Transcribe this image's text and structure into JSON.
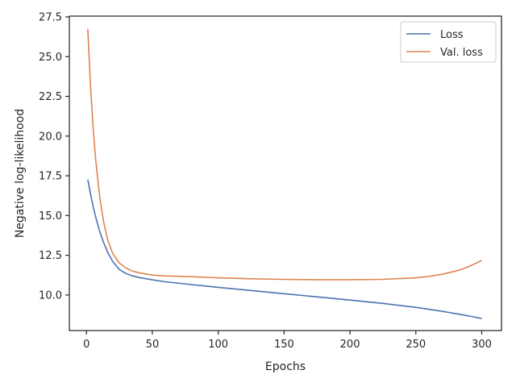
{
  "chart_data": {
    "type": "line",
    "xlabel": "Epochs",
    "ylabel": "Negative log-likelihood",
    "xlim": [
      -13,
      315
    ],
    "ylim": [
      7.76,
      27.55
    ],
    "xticks": [
      0,
      50,
      100,
      150,
      200,
      250,
      300
    ],
    "xtick_labels": [
      "0",
      "50",
      "100",
      "150",
      "200",
      "250",
      "300"
    ],
    "yticks": [
      10.0,
      12.5,
      15.0,
      17.5,
      20.0,
      22.5,
      25.0,
      27.5
    ],
    "ytick_labels": [
      "10.0",
      "12.5",
      "15.0",
      "17.5",
      "20.0",
      "22.5",
      "25.0",
      "27.5"
    ],
    "grid": false,
    "legend_position": "top-right",
    "series": [
      {
        "name": "Loss",
        "color": "#4c72b0",
        "x": [
          1,
          3,
          5,
          7,
          10,
          13,
          16,
          20,
          25,
          30,
          35,
          40,
          50,
          60,
          80,
          100,
          125,
          150,
          175,
          200,
          225,
          250,
          265,
          275,
          280,
          285,
          290,
          295,
          300
        ],
        "y": [
          17.27,
          16.4,
          15.6,
          14.9,
          14.0,
          13.3,
          12.7,
          12.1,
          11.6,
          11.35,
          11.2,
          11.1,
          10.95,
          10.83,
          10.65,
          10.48,
          10.28,
          10.08,
          9.88,
          9.68,
          9.47,
          9.22,
          9.04,
          8.9,
          8.83,
          8.76,
          8.68,
          8.6,
          8.51
        ]
      },
      {
        "name": "Val. loss",
        "color": "#dd8452",
        "x": [
          1,
          3,
          5,
          7,
          10,
          13,
          16,
          20,
          25,
          30,
          35,
          40,
          50,
          60,
          80,
          100,
          125,
          150,
          175,
          200,
          225,
          250,
          260,
          270,
          280,
          285,
          290,
          295,
          300
        ],
        "y": [
          26.75,
          23.3,
          20.6,
          18.5,
          16.2,
          14.6,
          13.5,
          12.6,
          12.0,
          11.7,
          11.5,
          11.4,
          11.25,
          11.2,
          11.15,
          11.08,
          11.02,
          10.98,
          10.96,
          10.96,
          10.98,
          11.08,
          11.17,
          11.3,
          11.5,
          11.62,
          11.78,
          11.97,
          12.18
        ]
      }
    ]
  }
}
